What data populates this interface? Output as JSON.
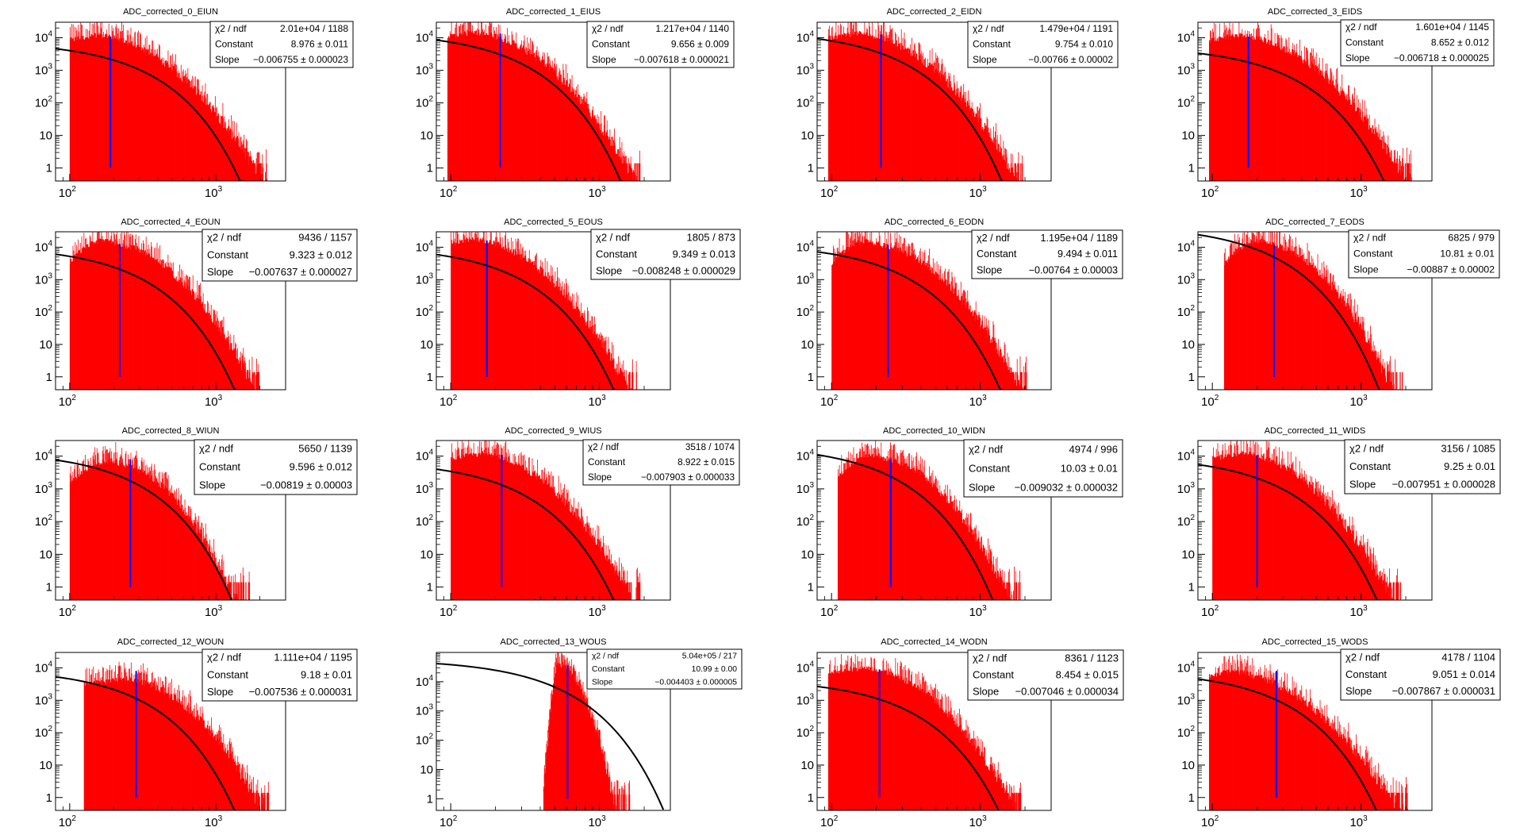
{
  "chart_data": [
    {
      "type": "histogram",
      "title": "ADC_corrected_0_EIUN",
      "xscale": "log",
      "yscale": "log",
      "xlim": [
        80,
        3000
      ],
      "ylim": [
        0.4,
        30000
      ],
      "x_ticks": [
        "10",
        "10"
      ],
      "y_ticks": [
        "1",
        "10",
        "10",
        "10",
        "10"
      ],
      "hist": {
        "start": 100,
        "end": 2250,
        "peak": 12000,
        "peak_x": 150,
        "rise": "flat",
        "tail_p": 3.2
      },
      "marker_x": 190,
      "fit": {
        "constant": 8.976,
        "slope": -0.006755
      },
      "stats": {
        "rows": [
          {
            "label": "χ2 / ndf",
            "value": "2.01e+04 / 1188"
          },
          {
            "label": "Constant",
            "value": "8.976 ± 0.011"
          },
          {
            "label": "Slope",
            "value": "−0.006755 ± 0.000023"
          }
        ]
      }
    },
    {
      "type": "histogram",
      "title": "ADC_corrected_1_EIUS",
      "xscale": "log",
      "yscale": "log",
      "xlim": [
        80,
        3000
      ],
      "ylim": [
        0.4,
        30000
      ],
      "x_ticks": [
        "10",
        "10"
      ],
      "y_ticks": [
        "1",
        "10",
        "10",
        "10",
        "10"
      ],
      "hist": {
        "start": 95,
        "end": 1900,
        "peak": 15000,
        "peak_x": 140,
        "rise": "flat",
        "tail_p": 3.3
      },
      "marker_x": 215,
      "fit": {
        "constant": 9.656,
        "slope": -0.007618
      },
      "stats": {
        "rows": [
          {
            "label": "χ2 / ndf",
            "value": "1.217e+04 / 1140"
          },
          {
            "label": "Constant",
            "value": "9.656 ± 0.009"
          },
          {
            "label": "Slope",
            "value": "−0.007618 ± 0.000021"
          }
        ]
      }
    },
    {
      "type": "histogram",
      "title": "ADC_corrected_2_EIDN",
      "xscale": "log",
      "yscale": "log",
      "xlim": [
        80,
        3000
      ],
      "ylim": [
        0.4,
        30000
      ],
      "x_ticks": [
        "10",
        "10"
      ],
      "y_ticks": [
        "1",
        "10",
        "10",
        "10",
        "10"
      ],
      "hist": {
        "start": 95,
        "end": 1950,
        "peak": 14000,
        "peak_x": 150,
        "rise": "flat",
        "tail_p": 3.3
      },
      "marker_x": 215,
      "fit": {
        "constant": 9.754,
        "slope": -0.00766
      },
      "stats": {
        "rows": [
          {
            "label": "χ2 / ndf",
            "value": "1.479e+04 / 1191"
          },
          {
            "label": "Constant",
            "value": "9.754 ± 0.010"
          },
          {
            "label": "Slope",
            "value": "−0.00766 ± 0.00002"
          }
        ]
      }
    },
    {
      "type": "histogram",
      "title": "ADC_corrected_3_EIDS",
      "xscale": "log",
      "yscale": "log",
      "xlim": [
        80,
        3000
      ],
      "ylim": [
        0.4,
        30000
      ],
      "x_ticks": [
        "10",
        "10"
      ],
      "y_ticks": [
        "1",
        "10",
        "10",
        "10",
        "10"
      ],
      "hist": {
        "start": 95,
        "end": 2200,
        "peak": 12000,
        "peak_x": 150,
        "rise": "flat",
        "tail_p": 3.2
      },
      "marker_x": 175,
      "fit": {
        "constant": 8.652,
        "slope": -0.006718
      },
      "stats": {
        "rows": [
          {
            "label": "χ2 / ndf",
            "value": "1.601e+04 / 1145"
          },
          {
            "label": "Constant",
            "value": "8.652 ± 0.012"
          },
          {
            "label": "Slope",
            "value": "−0.006718 ± 0.000025"
          }
        ]
      }
    },
    {
      "type": "histogram",
      "title": "ADC_corrected_4_EOUN",
      "xscale": "log",
      "yscale": "log",
      "xlim": [
        80,
        3000
      ],
      "ylim": [
        0.4,
        30000
      ],
      "x_ticks": [
        "10",
        "10"
      ],
      "y_ticks": [
        "1",
        "10",
        "10",
        "10",
        "10"
      ],
      "hist": {
        "start": 100,
        "end": 2000,
        "peak": 14000,
        "peak_x": 190,
        "rise": "bump",
        "tail_p": 3.3
      },
      "marker_x": 220,
      "fit": {
        "constant": 9.323,
        "slope": -0.007637
      },
      "stats": {
        "rows": [
          {
            "label": "χ2 / ndf",
            "value": "9436 / 1157"
          },
          {
            "label": "Constant",
            "value": "9.323 ± 0.012"
          },
          {
            "label": "Slope",
            "value": "−0.007637 ± 0.000027"
          }
        ]
      }
    },
    {
      "type": "histogram",
      "title": "ADC_corrected_5_EOUS",
      "xscale": "log",
      "yscale": "log",
      "xlim": [
        80,
        3000
      ],
      "ylim": [
        0.4,
        30000
      ],
      "x_ticks": [
        "10",
        "10"
      ],
      "y_ticks": [
        "1",
        "10",
        "10",
        "10",
        "10"
      ],
      "hist": {
        "start": 100,
        "end": 1800,
        "peak": 18000,
        "peak_x": 140,
        "rise": "flat",
        "tail_p": 3.5
      },
      "marker_x": 175,
      "fit": {
        "constant": 9.349,
        "slope": -0.008248
      },
      "stats": {
        "rows": [
          {
            "label": "χ2 / ndf",
            "value": "1805 / 873"
          },
          {
            "label": "Constant",
            "value": "9.349 ± 0.013"
          },
          {
            "label": "Slope",
            "value": "−0.008248 ± 0.000029"
          }
        ]
      }
    },
    {
      "type": "histogram",
      "title": "ADC_corrected_6_EODN",
      "xscale": "log",
      "yscale": "log",
      "xlim": [
        80,
        3000
      ],
      "ylim": [
        0.4,
        30000
      ],
      "x_ticks": [
        "10",
        "10"
      ],
      "y_ticks": [
        "1",
        "10",
        "10",
        "10",
        "10"
      ],
      "hist": {
        "start": 100,
        "end": 2050,
        "peak": 13000,
        "peak_x": 190,
        "rise": "bump",
        "tail_p": 3.3
      },
      "marker_x": 240,
      "fit": {
        "constant": 9.494,
        "slope": -0.00764
      },
      "stats": {
        "rows": [
          {
            "label": "χ2 / ndf",
            "value": "1.195e+04 / 1189"
          },
          {
            "label": "Constant",
            "value": "9.494 ± 0.011"
          },
          {
            "label": "Slope",
            "value": "−0.00764 ± 0.00003"
          }
        ]
      }
    },
    {
      "type": "histogram",
      "title": "ADC_corrected_7_EODS",
      "xscale": "log",
      "yscale": "log",
      "xlim": [
        80,
        3000
      ],
      "ylim": [
        0.4,
        30000
      ],
      "x_ticks": [
        "10",
        "10"
      ],
      "y_ticks": [
        "1",
        "10",
        "10",
        "10",
        "10"
      ],
      "hist": {
        "start": 120,
        "end": 1900,
        "peak": 13000,
        "peak_x": 230,
        "rise": "bump",
        "tail_p": 3.6
      },
      "marker_x": 260,
      "fit": {
        "constant": 10.81,
        "slope": -0.00887
      },
      "stats": {
        "rows": [
          {
            "label": "χ2 / ndf",
            "value": "6825 / 979"
          },
          {
            "label": "Constant",
            "value": "10.81 ± 0.01"
          },
          {
            "label": "Slope",
            "value": "−0.00887 ± 0.00002"
          }
        ]
      }
    },
    {
      "type": "histogram",
      "title": "ADC_corrected_8_WIUN",
      "xscale": "log",
      "yscale": "log",
      "xlim": [
        80,
        3000
      ],
      "ylim": [
        0.4,
        30000
      ],
      "x_ticks": [
        "10",
        "10"
      ],
      "y_ticks": [
        "1",
        "10",
        "10",
        "10",
        "10"
      ],
      "hist": {
        "start": 100,
        "end": 1700,
        "peak": 6000,
        "peak_x": 210,
        "rise": "bump",
        "tail_p": 3.6
      },
      "marker_x": 260,
      "fit": {
        "constant": 9.596,
        "slope": -0.00819
      },
      "stats": {
        "rows": [
          {
            "label": "χ2 / ndf",
            "value": "5650 / 1139"
          },
          {
            "label": "Constant",
            "value": "9.596 ± 0.012"
          },
          {
            "label": "Slope",
            "value": "−0.00819 ± 0.00003"
          }
        ]
      }
    },
    {
      "type": "histogram",
      "title": "ADC_corrected_9_WIUS",
      "xscale": "log",
      "yscale": "log",
      "xlim": [
        80,
        3000
      ],
      "ylim": [
        0.4,
        30000
      ],
      "x_ticks": [
        "10",
        "10"
      ],
      "y_ticks": [
        "1",
        "10",
        "10",
        "10",
        "10"
      ],
      "hist": {
        "start": 100,
        "end": 1900,
        "peak": 12000,
        "peak_x": 160,
        "rise": "flat",
        "tail_p": 3.4
      },
      "marker_x": 220,
      "fit": {
        "constant": 8.922,
        "slope": -0.007903
      },
      "stats": {
        "rows": [
          {
            "label": "χ2 / ndf",
            "value": "3518 / 1074"
          },
          {
            "label": "Constant",
            "value": "8.922 ± 0.015"
          },
          {
            "label": "Slope",
            "value": "−0.007903 ± 0.000033"
          }
        ]
      }
    },
    {
      "type": "histogram",
      "title": "ADC_corrected_10_WIDN",
      "xscale": "log",
      "yscale": "log",
      "xlim": [
        80,
        3000
      ],
      "ylim": [
        0.4,
        30000
      ],
      "x_ticks": [
        "10",
        "10"
      ],
      "y_ticks": [
        "1",
        "10",
        "10",
        "10",
        "10"
      ],
      "hist": {
        "start": 110,
        "end": 1900,
        "peak": 9000,
        "peak_x": 210,
        "rise": "bump",
        "tail_p": 3.5
      },
      "marker_x": 250,
      "fit": {
        "constant": 10.03,
        "slope": -0.009032
      },
      "stats": {
        "rows": [
          {
            "label": "χ2 / ndf",
            "value": "4974 / 996"
          },
          {
            "label": "Constant",
            "value": "10.03 ± 0.01"
          },
          {
            "label": "Slope",
            "value": "−0.009032 ± 0.000032"
          }
        ]
      }
    },
    {
      "type": "histogram",
      "title": "ADC_corrected_11_WIDS",
      "xscale": "log",
      "yscale": "log",
      "xlim": [
        80,
        3000
      ],
      "ylim": [
        0.4,
        30000
      ],
      "x_ticks": [
        "10",
        "10"
      ],
      "y_ticks": [
        "1",
        "10",
        "10",
        "10",
        "10"
      ],
      "hist": {
        "start": 100,
        "end": 1850,
        "peak": 12000,
        "peak_x": 160,
        "rise": "flat",
        "tail_p": 3.4
      },
      "marker_x": 200,
      "fit": {
        "constant": 9.25,
        "slope": -0.007951
      },
      "stats": {
        "rows": [
          {
            "label": "χ2 / ndf",
            "value": "3156 / 1085"
          },
          {
            "label": "Constant",
            "value": "9.25 ± 0.01"
          },
          {
            "label": "Slope",
            "value": "−0.007951 ± 0.000028"
          }
        ]
      }
    },
    {
      "type": "histogram",
      "title": "ADC_corrected_12_WOUN",
      "xscale": "log",
      "yscale": "log",
      "xlim": [
        80,
        3000
      ],
      "ylim": [
        0.4,
        30000
      ],
      "x_ticks": [
        "10",
        "10"
      ],
      "y_ticks": [
        "1",
        "10",
        "10",
        "10",
        "10"
      ],
      "hist": {
        "start": 125,
        "end": 2300,
        "peak": 4500,
        "peak_x": 250,
        "rise": "flat",
        "tail_p": 3.0
      },
      "marker_x": 285,
      "fit": {
        "constant": 9.18,
        "slope": -0.007536
      },
      "stats": {
        "rows": [
          {
            "label": "χ2 / ndf",
            "value": "1.111e+04 / 1195"
          },
          {
            "label": "Constant",
            "value": "9.18 ± 0.01"
          },
          {
            "label": "Slope",
            "value": "−0.007536 ± 0.000031"
          }
        ]
      }
    },
    {
      "type": "histogram",
      "title": "ADC_corrected_13_WOUS",
      "xscale": "log",
      "yscale": "log",
      "xlim": [
        80,
        3000
      ],
      "ylim": [
        0.4,
        100000
      ],
      "x_ticks": [
        "10",
        "10"
      ],
      "y_ticks": [
        "1",
        "10",
        "10",
        "10",
        "10"
      ],
      "hist": {
        "start": 420,
        "end": 1600,
        "peak": 40000,
        "peak_x": 520,
        "rise": "sharp",
        "tail_p": 5.5
      },
      "marker_x": 610,
      "fit": {
        "constant": 10.99,
        "slope": -0.004403
      },
      "stats": {
        "rows": [
          {
            "label": "χ2 / ndf",
            "value": "5.04e+05 / 217"
          },
          {
            "label": "Constant",
            "value": "10.99 ± 0.00"
          },
          {
            "label": "Slope",
            "value": "−0.004403 ± 0.000005"
          }
        ]
      }
    },
    {
      "type": "histogram",
      "title": "ADC_corrected_14_WODN",
      "xscale": "log",
      "yscale": "log",
      "xlim": [
        80,
        3000
      ],
      "ylim": [
        0.4,
        30000
      ],
      "x_ticks": [
        "10",
        "10"
      ],
      "y_ticks": [
        "1",
        "10",
        "10",
        "10",
        "10"
      ],
      "hist": {
        "start": 95,
        "end": 1900,
        "peak": 10000,
        "peak_x": 170,
        "rise": "flat",
        "tail_p": 3.2
      },
      "marker_x": 210,
      "fit": {
        "constant": 8.454,
        "slope": -0.007046
      },
      "stats": {
        "rows": [
          {
            "label": "χ2 / ndf",
            "value": "8361 / 1123"
          },
          {
            "label": "Constant",
            "value": "8.454 ± 0.015"
          },
          {
            "label": "Slope",
            "value": "−0.007046 ± 0.000034"
          }
        ]
      }
    },
    {
      "type": "histogram",
      "title": "ADC_corrected_15_WODS",
      "xscale": "log",
      "yscale": "log",
      "xlim": [
        80,
        3000
      ],
      "ylim": [
        0.4,
        30000
      ],
      "x_ticks": [
        "10",
        "10"
      ],
      "y_ticks": [
        "1",
        "10",
        "10",
        "10",
        "10"
      ],
      "hist": {
        "start": 95,
        "end": 2100,
        "peak": 8000,
        "peak_x": 130,
        "rise": "flat",
        "tail_p": 3.3
      },
      "marker_x": 270,
      "fit": {
        "constant": 9.051,
        "slope": -0.007867
      },
      "stats": {
        "rows": [
          {
            "label": "χ2 / ndf",
            "value": "4178 / 1104"
          },
          {
            "label": "Constant",
            "value": "9.051 ± 0.014"
          },
          {
            "label": "Slope",
            "value": "−0.007867 ± 0.000031"
          }
        ]
      }
    }
  ],
  "colors": {
    "histogram": "#ff0000",
    "fit": "#000000",
    "marker": "#0000ff",
    "frame": "#000000"
  }
}
